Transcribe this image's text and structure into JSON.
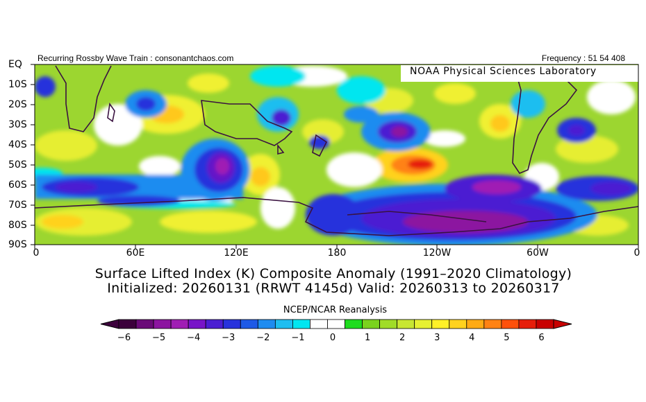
{
  "header": {
    "left": "Recurring Rossby Wave Train : consonantchaos.com",
    "right": "Frequency : 51 54 408"
  },
  "lab_label": "NOAA Physical Sciences Laboratory",
  "map": {
    "lat_labels": [
      "EQ",
      "10S",
      "20S",
      "30S",
      "40S",
      "50S",
      "60S",
      "70S",
      "80S",
      "90S"
    ],
    "lon_labels": [
      "0",
      "60E",
      "120E",
      "180",
      "120W",
      "60W",
      "0"
    ],
    "fields": {
      "variable": "Surface Lifted Index (K) Composite Anomaly",
      "domain": "Southern Hemisphere, EQ to 90S, 0 to 360",
      "positive_centers": [
        {
          "region": "South Pacific near 120W, 50S",
          "value": 5.5
        },
        {
          "region": "Subtropical Indian Ocean near 70E, 25S",
          "value": 3.5
        },
        {
          "region": "South Atlantic near 20W, 45S",
          "value": 3
        },
        {
          "region": "Southern Australia near 135E, 55S",
          "value": 3
        }
      ],
      "negative_centers": [
        {
          "region": "Southern Ocean near 110E, 45S",
          "value": -4
        },
        {
          "region": "South Pacific near 100W, 65S",
          "value": -5
        },
        {
          "region": "Ross/Amundsen Sea near 120W, 80S",
          "value": -4.5
        },
        {
          "region": "South Pacific near 150W, 35S",
          "value": -3.5
        },
        {
          "region": "South Atlantic near 30W, 35S",
          "value": -3.5
        }
      ]
    }
  },
  "caption": {
    "line1": "Surface Lifted Index (K) Composite Anomaly (1991–2020 Climatology)",
    "line2": "Initialized: 20260131 (RRWT 4145d) Valid: 20260313 to 20260317"
  },
  "source": "NCEP/NCAR Reanalysis",
  "colorbar": {
    "labels": [
      "−6",
      "−5",
      "−4",
      "−3",
      "−2",
      "−1",
      "0",
      "1",
      "2",
      "3",
      "4",
      "5",
      "6"
    ],
    "colors": [
      "#3c003c",
      "#6a0a78",
      "#8c14a0",
      "#a01eb4",
      "#7814c8",
      "#4b1ed2",
      "#2832dc",
      "#1e5ae6",
      "#1e8cf0",
      "#1ebef0",
      "#00e6f0",
      "#ffffff",
      "#ffffff",
      "#1edc1e",
      "#7ad21e",
      "#a0dc28",
      "#c8e632",
      "#e6f032",
      "#fff028",
      "#ffd21e",
      "#ffaa14",
      "#ff8214",
      "#ff500a",
      "#e61e0a",
      "#c80000"
    ]
  }
}
